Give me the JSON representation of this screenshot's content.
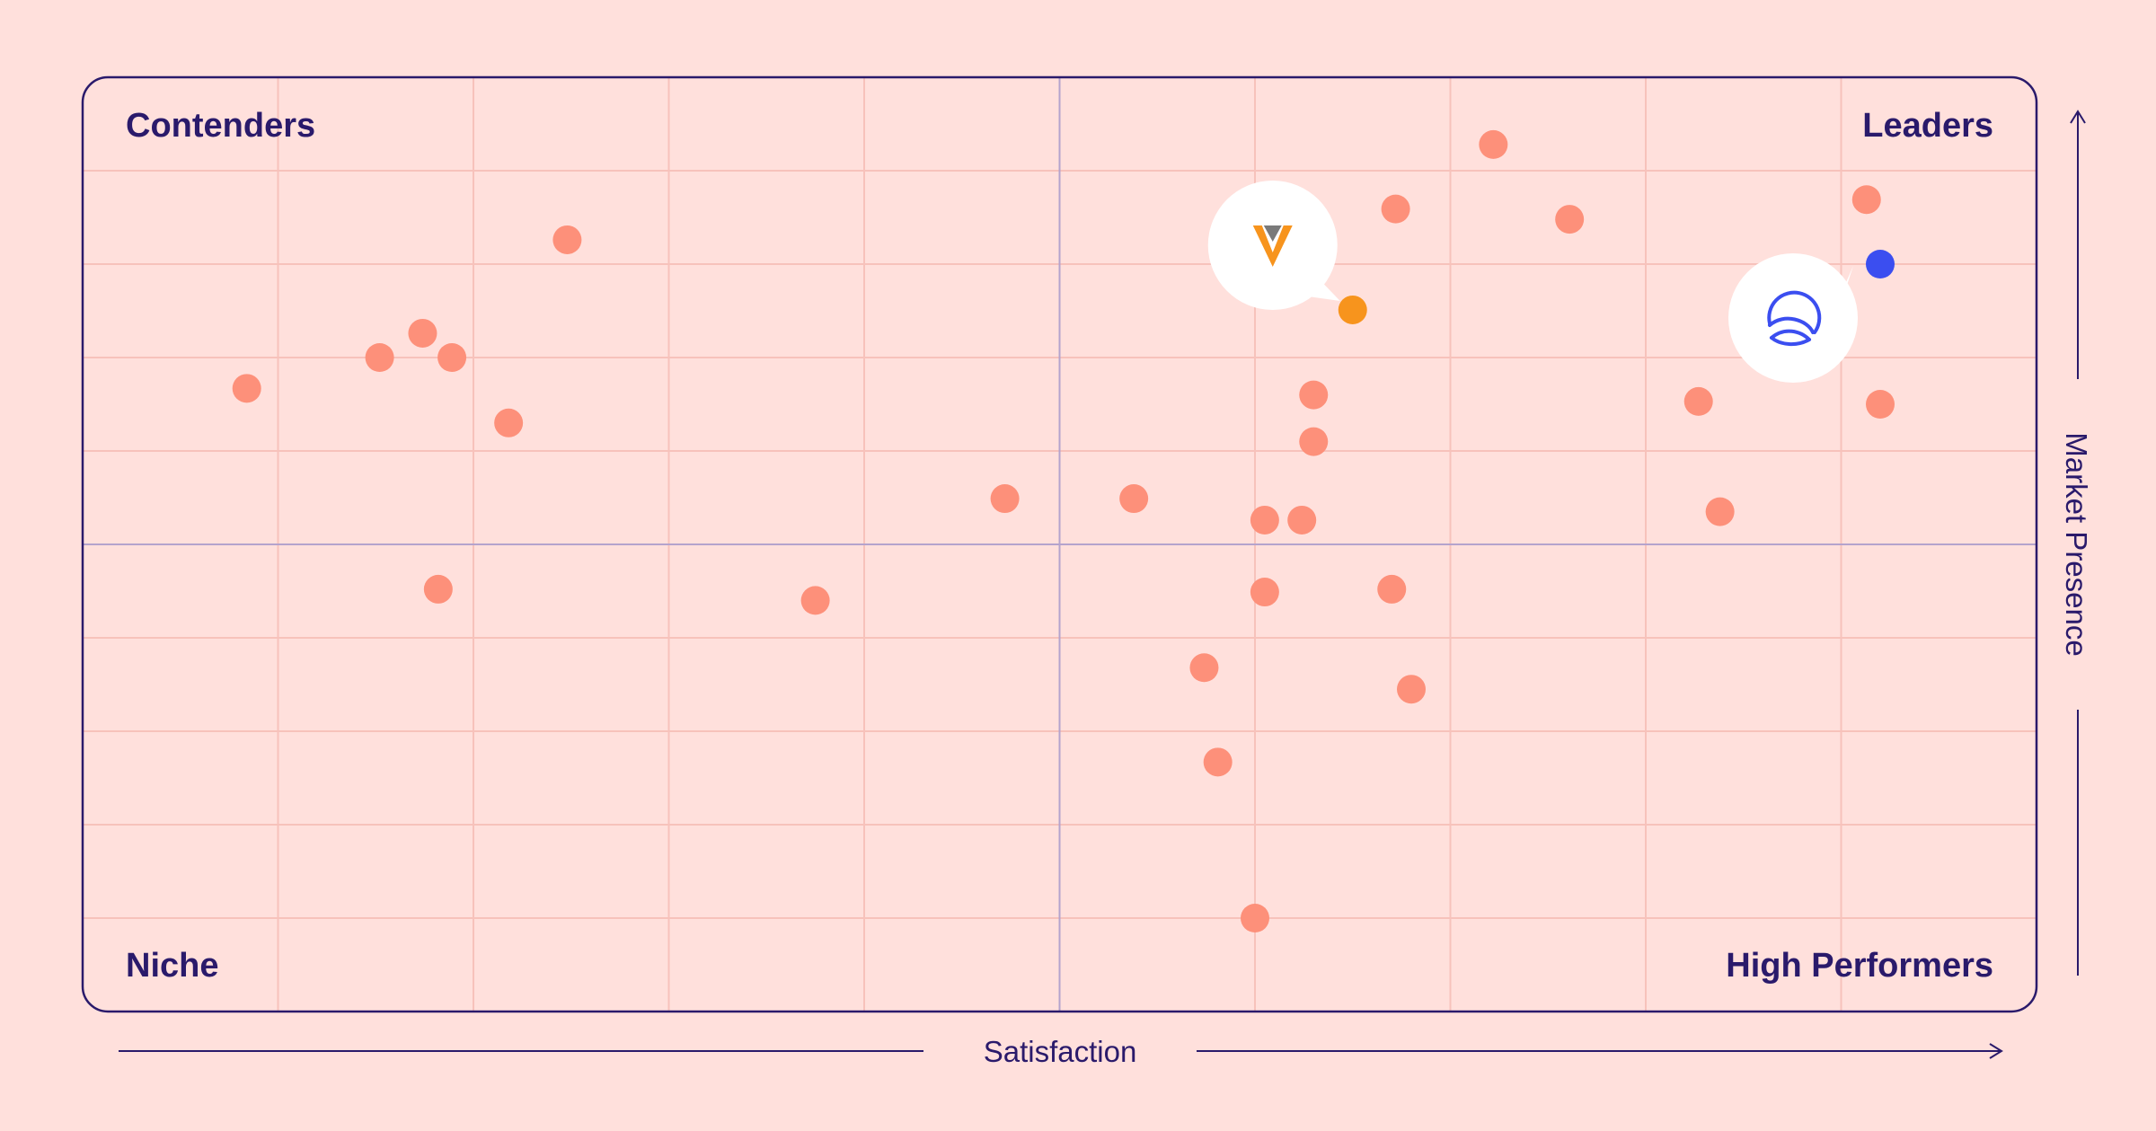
{
  "chart_data": {
    "type": "scatter",
    "title": "",
    "xlabel": "Satisfaction",
    "ylabel": "Market Presence",
    "xlim": [
      0,
      100
    ],
    "ylim": [
      0,
      100
    ],
    "grid": true,
    "quadrants": {
      "top_left": "Contenders",
      "top_right": "Leaders",
      "bottom_left": "Niche",
      "bottom_right": "High Performers"
    },
    "colors": {
      "background": "#ffe0dc",
      "frame": "#2a1a6b",
      "grid": "#f7c2bb",
      "center_lines": "#b4a3cd",
      "point": "#fd907a",
      "highlight_orange": "#f7941d",
      "highlight_blue": "#3b4ef0",
      "logo_gray": "#7a7a7a"
    },
    "series": [
      {
        "role": "other-vendors",
        "color": "#fd907a",
        "points": [
          {
            "x": 8.4,
            "y": 66.7
          },
          {
            "x": 15.2,
            "y": 70.0
          },
          {
            "x": 17.4,
            "y": 72.6
          },
          {
            "x": 18.9,
            "y": 70.0
          },
          {
            "x": 21.8,
            "y": 63.0
          },
          {
            "x": 24.8,
            "y": 82.6
          },
          {
            "x": 18.2,
            "y": 45.2
          },
          {
            "x": 37.5,
            "y": 44.0
          },
          {
            "x": 47.2,
            "y": 54.9
          },
          {
            "x": 53.8,
            "y": 54.9
          },
          {
            "x": 60.5,
            "y": 52.6
          },
          {
            "x": 62.4,
            "y": 52.6
          },
          {
            "x": 63.0,
            "y": 66.0
          },
          {
            "x": 63.0,
            "y": 61.0
          },
          {
            "x": 67.2,
            "y": 85.9
          },
          {
            "x": 72.2,
            "y": 92.8
          },
          {
            "x": 76.1,
            "y": 84.8
          },
          {
            "x": 60.5,
            "y": 44.9
          },
          {
            "x": 67.0,
            "y": 45.2
          },
          {
            "x": 57.4,
            "y": 36.8
          },
          {
            "x": 68.0,
            "y": 34.5
          },
          {
            "x": 58.1,
            "y": 26.7
          },
          {
            "x": 60.0,
            "y": 10.0
          },
          {
            "x": 82.7,
            "y": 65.3
          },
          {
            "x": 83.8,
            "y": 53.5
          },
          {
            "x": 91.3,
            "y": 86.9
          },
          {
            "x": 92.0,
            "y": 65.0
          }
        ]
      },
      {
        "role": "highlight-v-logo",
        "color": "#f7941d",
        "logo": "v-chevron-logo",
        "points": [
          {
            "x": 65.0,
            "y": 75.1
          }
        ]
      },
      {
        "role": "highlight-wave-logo",
        "color": "#3b4ef0",
        "logo": "wave-circle-logo",
        "points": [
          {
            "x": 92.0,
            "y": 80.0
          }
        ]
      }
    ]
  }
}
